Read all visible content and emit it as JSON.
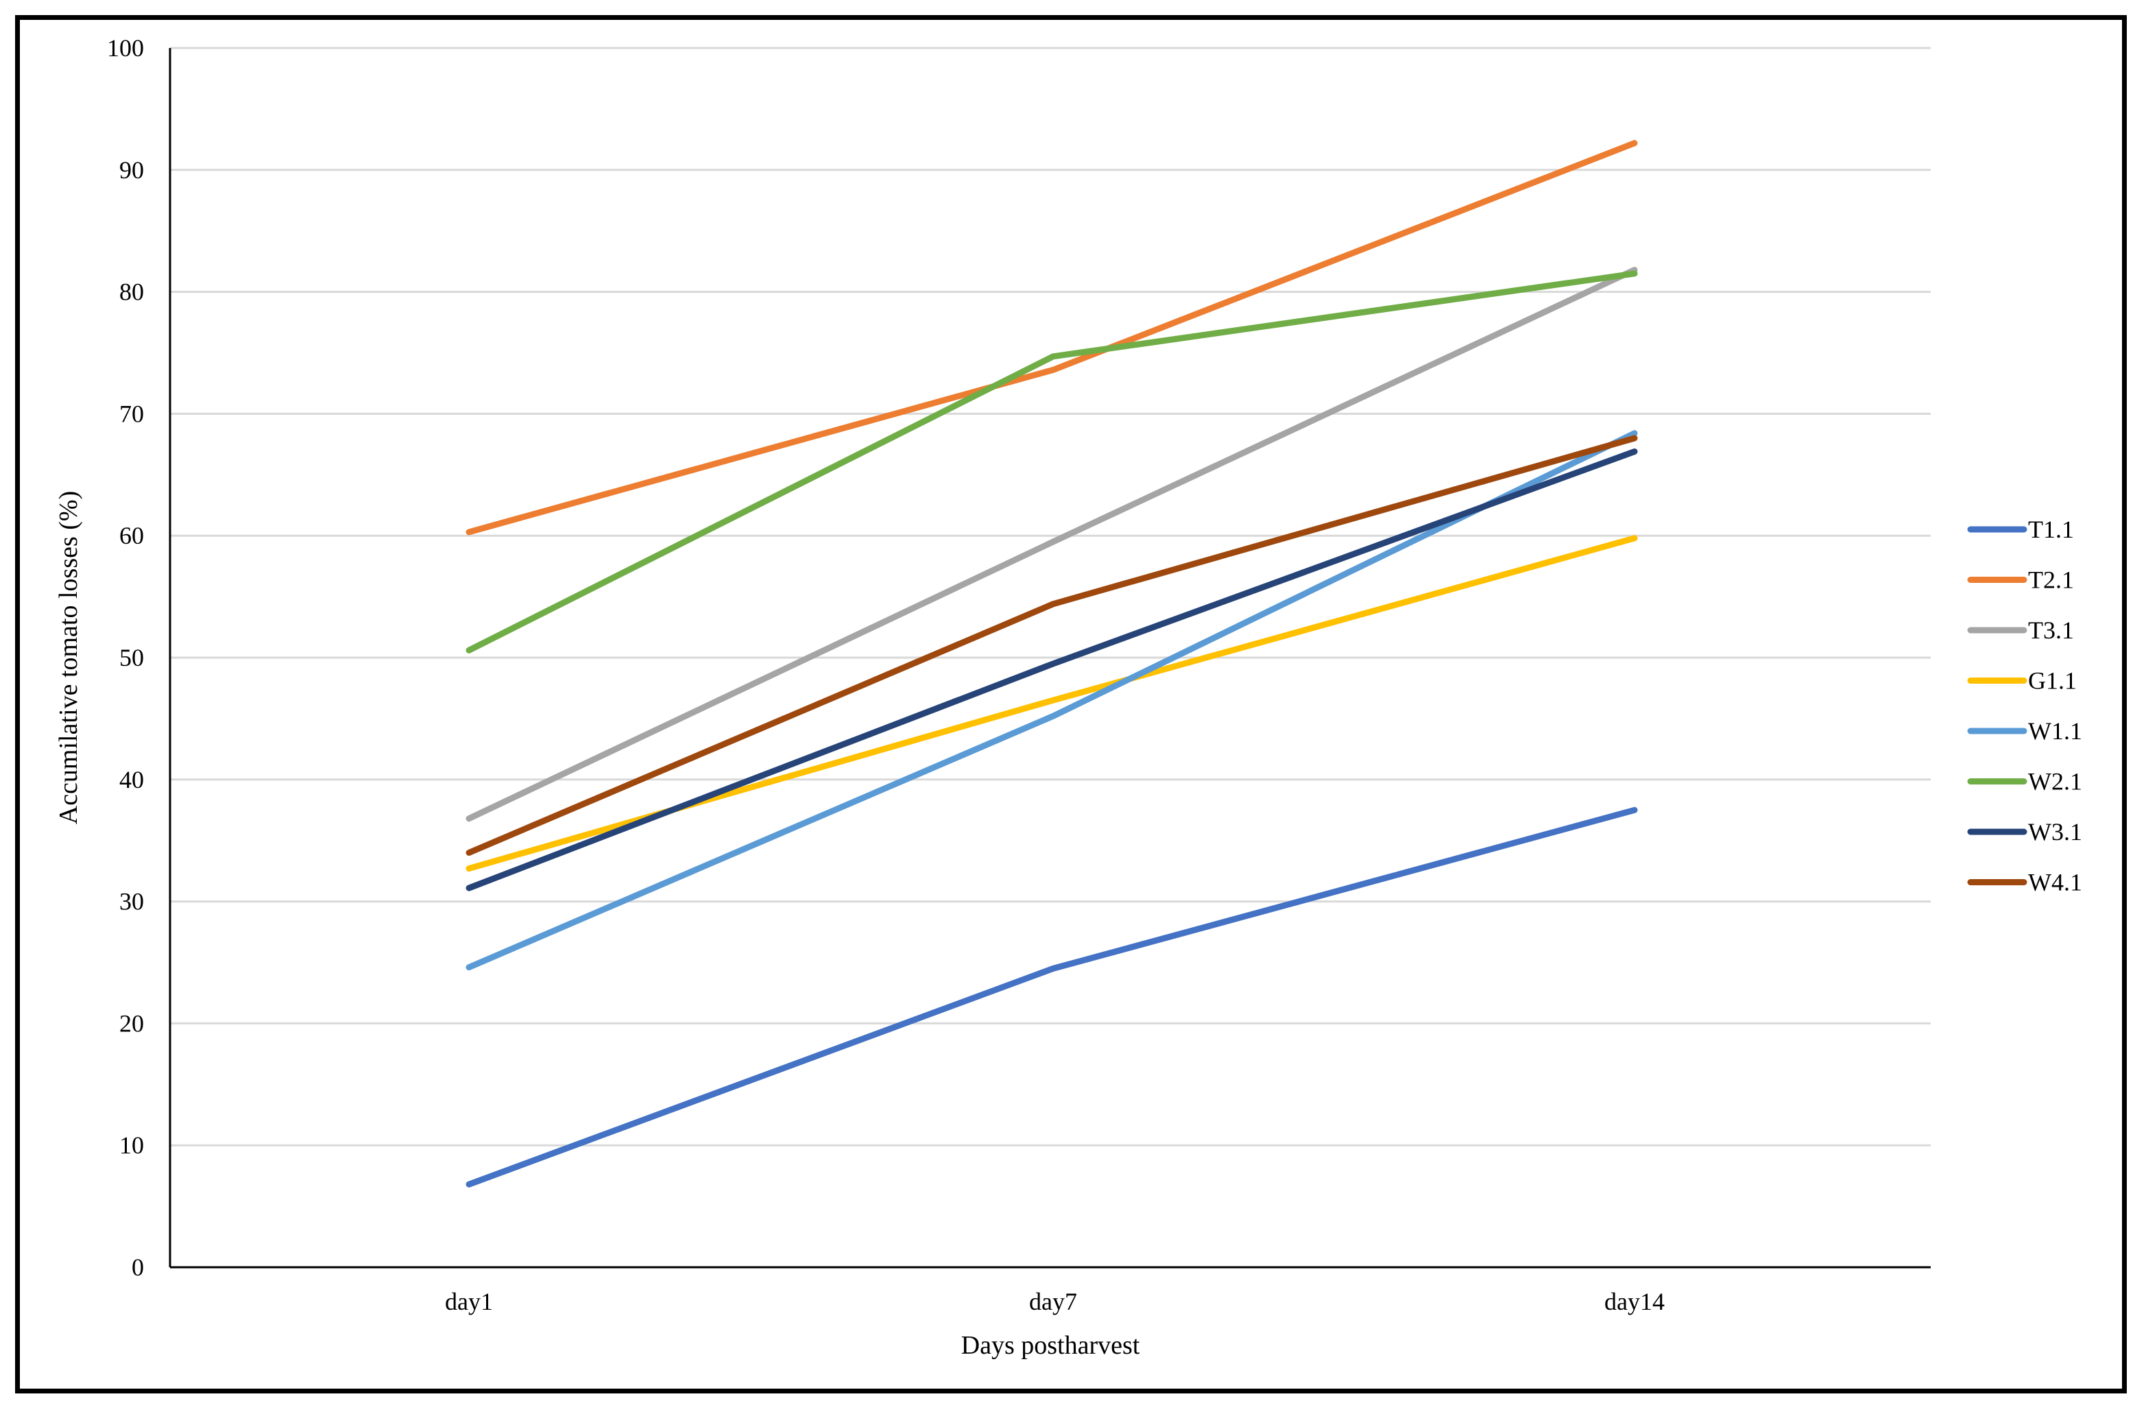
{
  "chart_data": {
    "type": "line",
    "title": "",
    "xlabel": "Days postharvest",
    "ylabel": "Accumilative tomato losses (%)",
    "categories": [
      "day1",
      "day7",
      "day14"
    ],
    "ylim": [
      0,
      100
    ],
    "yticks": [
      0,
      10,
      20,
      30,
      40,
      50,
      60,
      70,
      80,
      90,
      100
    ],
    "grid": "horizontal",
    "legend_position": "right",
    "series": [
      {
        "name": "T1.1",
        "color": "#4472C4",
        "values": [
          6.8,
          24.5,
          37.5
        ]
      },
      {
        "name": "T2.1",
        "color": "#ED7D31",
        "values": [
          60.3,
          73.6,
          92.2
        ]
      },
      {
        "name": "T3.1",
        "color": "#A5A5A5",
        "values": [
          36.8,
          59.5,
          81.8
        ]
      },
      {
        "name": "G1.1",
        "color": "#FFC000",
        "values": [
          32.7,
          46.5,
          59.8
        ]
      },
      {
        "name": "W1.1",
        "color": "#5B9BD5",
        "values": [
          24.6,
          45.2,
          68.4
        ]
      },
      {
        "name": "W2.1",
        "color": "#70AD47",
        "values": [
          50.6,
          74.7,
          81.5
        ]
      },
      {
        "name": "W3.1",
        "color": "#264478",
        "values": [
          31.1,
          49.5,
          66.9
        ]
      },
      {
        "name": "W4.1",
        "color": "#9E480E",
        "values": [
          34.0,
          54.4,
          68.0
        ]
      }
    ]
  }
}
